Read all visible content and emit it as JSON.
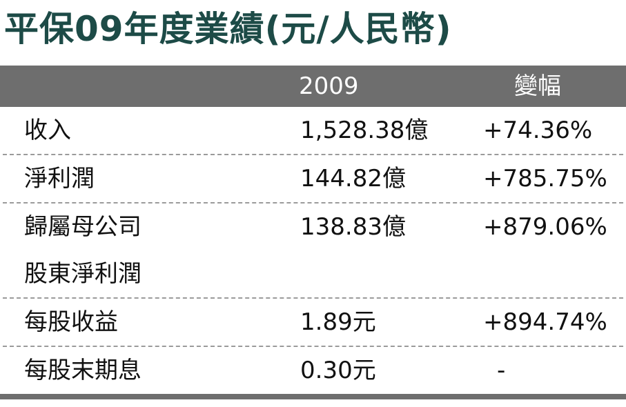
{
  "title": "平保09年度業績(元/人民幣)",
  "table": {
    "header": [
      "2009",
      "變幅"
    ],
    "rows": [
      [
        "收入",
        "1,528.38億",
        "+74.36%"
      ],
      [
        "淨利潤",
        "144.82億",
        "+785.75%"
      ],
      [
        "歸屬母公司\n股東淨利潤",
        "138.83億",
        "+879.06%"
      ],
      [
        "每股收益",
        "1.89元",
        "+894.74%"
      ],
      [
        "每股末期息",
        "0.30元",
        "-"
      ]
    ]
  }
}
